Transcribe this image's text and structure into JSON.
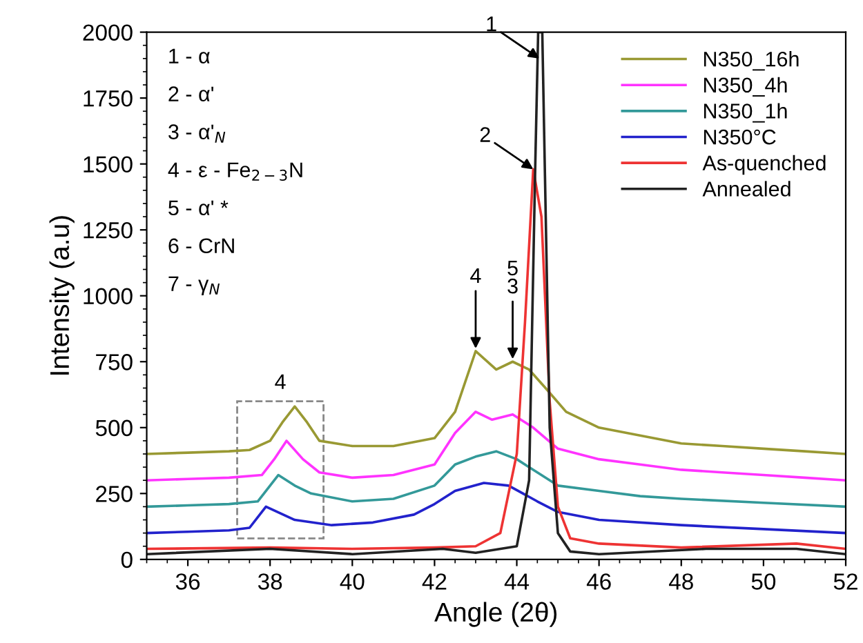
{
  "chart_data": {
    "type": "line",
    "xlabel": "Angle (2θ)",
    "ylabel": "Intensity (a.u)",
    "xlim": [
      35,
      52
    ],
    "xticks": [
      36,
      38,
      40,
      42,
      44,
      46,
      48,
      50,
      52
    ],
    "ylim": [
      0,
      2000
    ],
    "yticks": [
      0,
      250,
      500,
      750,
      1000,
      1250,
      1500,
      1750,
      2000
    ],
    "legend": "top right",
    "grid": false,
    "line_style": "solid",
    "marker": "none",
    "series": [
      {
        "name": "N350_16h",
        "color": "#999933",
        "x": [
          35,
          36,
          37,
          37.5,
          38.0,
          38.3,
          38.6,
          38.9,
          39.2,
          40,
          41,
          42,
          42.5,
          43.0,
          43.5,
          43.9,
          44.3,
          44.7,
          45.2,
          46,
          47,
          48,
          49,
          50,
          51,
          52
        ],
        "values": [
          400,
          405,
          410,
          415,
          450,
          520,
          580,
          520,
          450,
          430,
          430,
          460,
          560,
          790,
          720,
          750,
          720,
          650,
          560,
          500,
          470,
          440,
          430,
          420,
          410,
          400
        ]
      },
      {
        "name": "N350_4h",
        "color": "#ff33ff",
        "x": [
          35,
          36,
          37,
          37.8,
          38.1,
          38.4,
          38.8,
          39.2,
          40,
          41,
          42,
          42.5,
          43.0,
          43.4,
          43.9,
          44.4,
          45,
          46,
          47,
          48,
          49,
          50,
          51,
          52
        ],
        "values": [
          300,
          305,
          310,
          320,
          380,
          450,
          380,
          330,
          310,
          320,
          360,
          480,
          560,
          530,
          550,
          500,
          420,
          380,
          360,
          340,
          330,
          320,
          310,
          300
        ]
      },
      {
        "name": "N350_1h",
        "color": "#339999",
        "x": [
          35,
          36,
          37,
          37.7,
          38.2,
          38.6,
          39,
          40,
          41,
          42,
          42.5,
          43.0,
          43.5,
          44,
          44.5,
          45,
          46,
          47,
          48,
          50,
          52
        ],
        "values": [
          200,
          205,
          210,
          220,
          320,
          280,
          250,
          220,
          230,
          280,
          360,
          390,
          410,
          380,
          330,
          280,
          260,
          240,
          230,
          215,
          200
        ]
      },
      {
        "name": "N350°C",
        "color": "#2222cc",
        "x": [
          35,
          36,
          37,
          37.5,
          37.9,
          38.6,
          39.5,
          40.5,
          41.5,
          42,
          42.5,
          43.2,
          43.8,
          44.5,
          45,
          46,
          48,
          50,
          52
        ],
        "values": [
          100,
          105,
          110,
          120,
          200,
          150,
          130,
          140,
          170,
          210,
          260,
          290,
          280,
          220,
          180,
          150,
          130,
          115,
          100
        ]
      },
      {
        "name": "As-quenched",
        "color": "#ee3333",
        "x": [
          35,
          38,
          40,
          42,
          43,
          43.6,
          44.0,
          44.2,
          44.4,
          44.6,
          44.8,
          45.0,
          45.3,
          46,
          48,
          50.8,
          52
        ],
        "values": [
          40,
          45,
          40,
          45,
          50,
          100,
          400,
          900,
          1480,
          1300,
          600,
          200,
          80,
          60,
          45,
          60,
          40
        ]
      },
      {
        "name": "Annealed",
        "color": "#222222",
        "x": [
          35,
          38,
          40,
          42.2,
          43,
          44.0,
          44.3,
          44.45,
          44.52,
          44.62,
          44.8,
          45.0,
          45.3,
          46,
          48.6,
          50.8,
          52
        ],
        "values": [
          20,
          40,
          20,
          40,
          25,
          50,
          300,
          1500,
          2000,
          2000,
          500,
          100,
          30,
          20,
          40,
          40,
          20
        ]
      }
    ],
    "annotations": [
      "1 - α",
      "2 - α'",
      "3 - α'$_{N}$",
      "4 - ε - Fe$_{2−3}$N",
      "5 - α' *",
      "6 - CrN",
      "7 - γ$_{N}$",
      "4",
      {
        "text": "1",
        "x": 44.55,
        "y": 1900
      },
      {
        "text": "2",
        "x": 44.4,
        "y": 1480
      },
      {
        "text": "4",
        "x": 43.0,
        "y": 800
      },
      {
        "text": "5\n3",
        "x": 43.9,
        "y": 760
      }
    ]
  }
}
